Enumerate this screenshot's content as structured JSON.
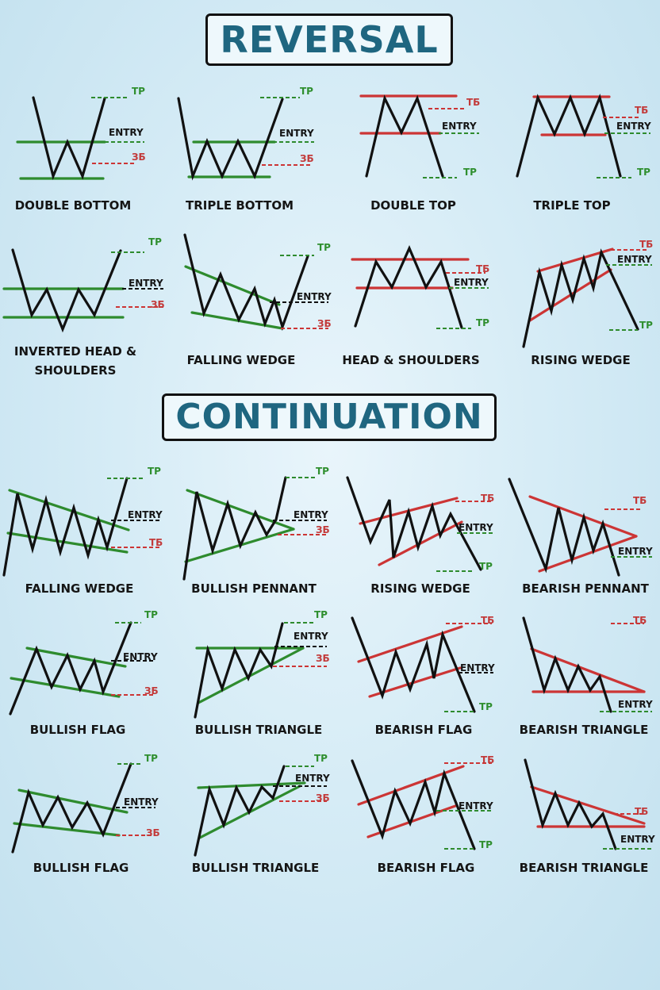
{
  "sections": {
    "reversal": "REVERSAL",
    "continuation": "CONTINUATION"
  },
  "markers": {
    "tp": "TP",
    "entry": "ENTRY",
    "sl": "ЗБ",
    "sl_alt": "ТБ"
  },
  "patterns": [
    {
      "id": "double-bottom",
      "name": "DOUBLE BOTTOM"
    },
    {
      "id": "triple-bottom",
      "name": "TRIPLE BOTTOM"
    },
    {
      "id": "double-top",
      "name": "DOUBLE TOP"
    },
    {
      "id": "triple-top",
      "name": "TRIPLE TOP"
    },
    {
      "id": "inverted-head-shoulders",
      "name": "INVERTED HEAD &",
      "name2": "SHOULDERS"
    },
    {
      "id": "falling-wedge-rev",
      "name": "FALLING WEDGE"
    },
    {
      "id": "head-shoulders",
      "name": "HEAD & SHOULDERS"
    },
    {
      "id": "rising-wedge-rev",
      "name": "RISING WEDGE"
    },
    {
      "id": "falling-wedge-cont",
      "name": "FALLING WEDGE"
    },
    {
      "id": "bullish-pennant",
      "name": "BULLISH PENNANT"
    },
    {
      "id": "rising-wedge-cont",
      "name": "RISING WEDGE"
    },
    {
      "id": "bearish-pennant",
      "name": "BEARISH PENNANT"
    },
    {
      "id": "bullish-flag-1",
      "name": "BULLISH FLAG"
    },
    {
      "id": "bullish-triangle-1",
      "name": "BULLISH TRIANGLE"
    },
    {
      "id": "bearish-flag-1",
      "name": "BEARISH FLAG"
    },
    {
      "id": "bearish-triangle-1",
      "name": "BEARISH TRIANGLE"
    },
    {
      "id": "bullish-flag-2",
      "name": "BULLISH FLAG"
    },
    {
      "id": "bullish-triangle-2",
      "name": "BULLISH TRIANGLE"
    },
    {
      "id": "bearish-flag-2",
      "name": "BEARISH FLAG"
    },
    {
      "id": "bearish-triangle-2",
      "name": "BEARISH TRIANGLE"
    }
  ],
  "colors": {
    "support": "#2e8b2e",
    "resistance": "#cc3535",
    "price": "#111111",
    "title": "#1f6680"
  }
}
